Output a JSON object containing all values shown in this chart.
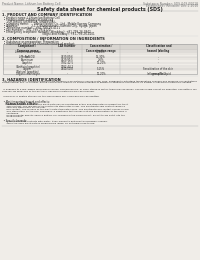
{
  "bg_color": "#f0ede8",
  "text_color": "#222222",
  "light_color": "#777777",
  "header_left": "Product Name: Lithium Ion Battery Cell",
  "header_right_line1": "Substance Number: SDS-049-00018",
  "header_right_line2": "Established / Revision: Dec.1.2010",
  "title": "Safety data sheet for chemical products (SDS)",
  "s1_title": "1. PRODUCT AND COMPANY IDENTIFICATION",
  "s1_lines": [
    "  • Product name: Lithium Ion Battery Cell",
    "  • Product code: Cylindrical-type cell",
    "      (UR18650J, UR18650A, UR18650A)",
    "  • Company name:      Sanyo Electric Co., Ltd., Mobile Energy Company",
    "  • Address:               2-1-1  Kamitakanari, Sumoto City, Hyogo, Japan",
    "  • Telephone number:   +81-799-26-4111",
    "  • Fax number:   +81-799-26-4120",
    "  • Emergency telephone number (Weekday): +81-799-26-3842",
    "                                              (Night and holiday): +81-799-26-4101"
  ],
  "s2_title": "2. COMPOSITION / INFORMATION ON INGREDIENTS",
  "s2_line1": "  • Substance or preparation: Preparation",
  "s2_line2": "  • Information about the chemical nature of product:",
  "tbl_hdr": [
    "Component /\nCommon name",
    "CAS number",
    "Concentration /\nConcentration range",
    "Classification and\nhazard labeling"
  ],
  "tbl_rows": [
    [
      "Lithium cobalt oxide\n(LiMnCoNiO2)",
      "-",
      "30-60%",
      "-"
    ],
    [
      "Iron",
      "7439-89-6",
      "15-30%",
      "-"
    ],
    [
      "Aluminum",
      "7429-90-5",
      "2-6%",
      "-"
    ],
    [
      "Graphite\n(Artificial graphite)\n(Natural graphite)",
      "7782-42-5\n7782-44-2",
      "10-20%",
      "-"
    ],
    [
      "Copper",
      "7440-50-8",
      "5-15%",
      "Sensitization of the skin\ngroup No.2"
    ],
    [
      "Organic electrolyte",
      "-",
      "10-20%",
      "Inflammable liquid"
    ]
  ],
  "s3_title": "3. HAZARDS IDENTIFICATION",
  "s3_para1": "  For the battery cell, chemical materials are stored in a hermetically sealed metal case, designed to withstand temperature changes and pressure-concentrations during normal use. As a result, during normal-use, there is no physical danger of ignition or aspiration and there is no danger of hazardous materials leakage.",
  "s3_para2": "  If exposed to a fire, added mechanical shocks, decompression, or been stored in water, there may be issues. The gas inside cannot be operated. The battery cell case will be breached of the partners, hazardous materials may be released.",
  "s3_para3": "  Moreover, if heated strongly by the surrounding fire, some gas may be emitted.",
  "b1_title": "  • Most important hazard and effects:",
  "b1_sub": "    Human health effects:",
  "b1_inh": "      Inhalation: The release of the electrolyte has an anesthesia action and stimulates in respiratory tract.",
  "b1_skin1": "      Skin contact: The release of the electrolyte stimulates a skin. The electrolyte skin contact causes a",
  "b1_skin2": "      sore and stimulation on the skin.",
  "b1_eye1": "      Eye contact: The release of the electrolyte stimulates eyes. The electrolyte eye contact causes a sore",
  "b1_eye2": "      and stimulation on the eye. Especially, a substance that causes a strong inflammation of the eyes is",
  "b1_eye3": "      contained.",
  "b1_env1": "      Environmental effects: Since a battery cell remains in the environment, do not throw out it into the",
  "b1_env2": "      environment.",
  "b2_title": "  • Specific hazards:",
  "b2_line1": "      If the electrolyte contacts with water, it will generate detrimental hydrogen fluoride.",
  "b2_line2": "      Since the used electrolyte is inflammable liquid, do not bring close to fire."
}
